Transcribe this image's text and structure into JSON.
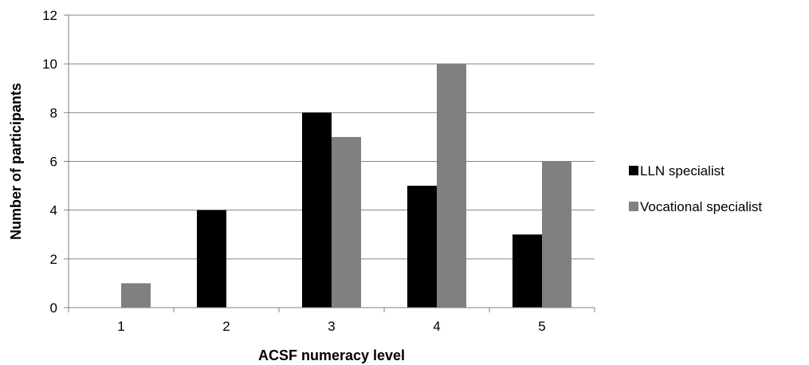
{
  "chart_data": {
    "type": "bar",
    "title": "",
    "xlabel": "ACSF numeracy level",
    "ylabel": "Number of participants",
    "categories": [
      "1",
      "2",
      "3",
      "4",
      "5"
    ],
    "series": [
      {
        "name": "LLN specialist",
        "color": "#000000",
        "values": [
          0,
          4,
          8,
          5,
          3
        ]
      },
      {
        "name": "Vocational specialist",
        "color": "#808080",
        "values": [
          1,
          0,
          7,
          10,
          6
        ]
      }
    ],
    "ylim": [
      0,
      12
    ],
    "yticks": [
      "0",
      "2",
      "4",
      "6",
      "8",
      "10",
      "12"
    ],
    "grid": true,
    "legend_position": "right"
  }
}
